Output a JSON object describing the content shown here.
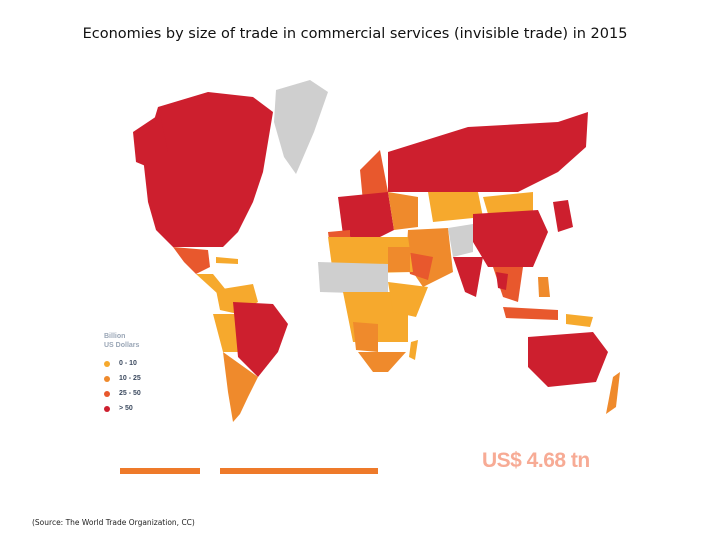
{
  "title": "Economies by size of trade in commercial services (invisible trade) in 2015",
  "legend": {
    "title_line1": "Billion",
    "title_line2": "US Dollars",
    "items": [
      {
        "label": "0 - 10",
        "color": "#f6a92d"
      },
      {
        "label": "10 - 25",
        "color": "#ef8a2c"
      },
      {
        "label": "25 - 50",
        "color": "#e8582d"
      },
      {
        "label": "> 50",
        "color": "#cd1f2e"
      }
    ]
  },
  "no_data_color": "#cfcfcf",
  "total": "US$ 4.68 tn",
  "source": "(Source: The World Trade Organization, CC)"
}
